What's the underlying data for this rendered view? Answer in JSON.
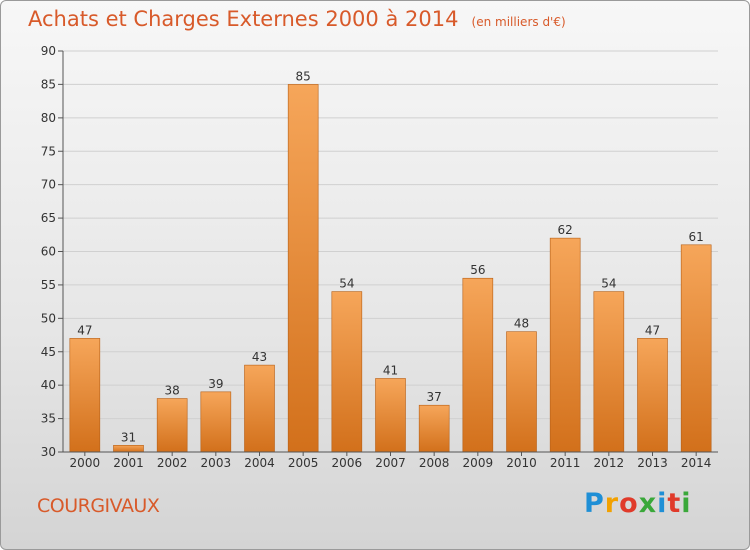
{
  "title": "Achats et Charges Externes 2000 à 2014",
  "unit": "(en milliers d'€)",
  "commune": "COURGIVAUX",
  "brand": {
    "letters": [
      "P",
      "r",
      "o",
      "x",
      "i",
      "t",
      "i"
    ],
    "colors": [
      "#1f8fd6",
      "#f2a100",
      "#e03a2a",
      "#3aa83a",
      "#1f8fd6",
      "#e03a2a",
      "#3aa83a"
    ]
  },
  "colors": {
    "bar_top": "#f6a65a",
    "bar_bottom": "#d2701b",
    "title": "#d85a2a"
  },
  "chart_data": {
    "type": "bar",
    "title": "Achats et Charges Externes 2000 à 2014",
    "subtitle": "(en milliers d'€)",
    "categories": [
      "2000",
      "2001",
      "2002",
      "2003",
      "2004",
      "2005",
      "2006",
      "2007",
      "2008",
      "2009",
      "2010",
      "2011",
      "2012",
      "2013",
      "2014"
    ],
    "values": [
      47,
      31,
      38,
      39,
      43,
      85,
      54,
      41,
      37,
      56,
      48,
      62,
      54,
      47,
      61
    ],
    "ylim": [
      30,
      90
    ],
    "yticks": [
      30,
      35,
      40,
      45,
      50,
      55,
      60,
      65,
      70,
      75,
      80,
      85,
      90
    ],
    "grid": true,
    "legend": "none"
  }
}
